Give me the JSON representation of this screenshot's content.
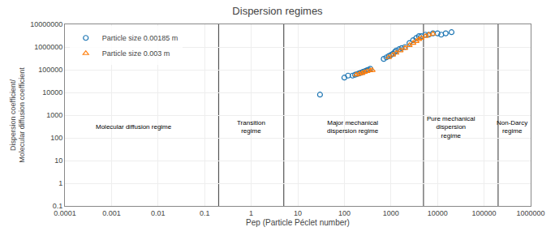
{
  "chart_data": {
    "type": "scatter",
    "title": "Dispersion regimes",
    "xlabel": "Pep (Particle Péclet number)",
    "ylabel": "Dispersion coefficient/\nMolecular diffusion coefficient",
    "log": true,
    "grid": true,
    "legend": "upper left",
    "xlim": [
      0.0001,
      1000000
    ],
    "ylim": [
      0.1,
      10000000
    ],
    "xticks": [
      0.0001,
      0.001,
      0.01,
      0.1,
      1,
      10,
      100,
      1000,
      10000,
      100000,
      1000000
    ],
    "yticks": [
      0.1,
      1,
      10,
      100,
      1000,
      10000,
      100000,
      1000000,
      10000000
    ],
    "vertical_lines": [
      0.2,
      5,
      5000,
      200000
    ],
    "annotations": [
      {
        "text": "Molecular diffusion regime",
        "x": 0.003,
        "y": 300
      },
      {
        "text": "Transition\nregime",
        "x": 1.0,
        "y": 300
      },
      {
        "text": "Major mechanical\ndispersion regime",
        "x": 150,
        "y": 300
      },
      {
        "text": "Pure mechanical\ndispersion\nregime",
        "x": 20000,
        "y": 300
      },
      {
        "text": "Non-Darcy\nregime",
        "x": 400000,
        "y": 300
      }
    ],
    "series": [
      {
        "name": "Particle size 0.00185 m",
        "marker": "circle",
        "x": [
          30,
          100,
          120,
          150,
          170,
          190,
          210,
          230,
          250,
          270,
          290,
          310,
          330,
          360,
          700,
          800,
          900,
          1000,
          1100,
          1200,
          1300,
          1500,
          1700,
          2000,
          2500,
          3000,
          3500,
          4000,
          4500,
          5500,
          6500,
          8000,
          10000,
          12000,
          15000,
          20000
        ],
        "values": [
          8000,
          45000,
          55000,
          55000,
          60000,
          65000,
          70000,
          75000,
          80000,
          85000,
          90000,
          95000,
          100000,
          110000,
          300000,
          350000,
          400000,
          450000,
          500000,
          600000,
          700000,
          800000,
          900000,
          1000000,
          1500000,
          2000000,
          2500000,
          3000000,
          3000000,
          3500000,
          3500000,
          4000000,
          4000000,
          3500000,
          4000000,
          4500000
        ]
      },
      {
        "name": "Particle size 0.003 m",
        "marker": "triangle",
        "x": [
          180,
          210,
          240,
          270,
          310,
          360,
          400,
          900,
          1100,
          1300,
          1600,
          2000,
          2500,
          3000,
          3500,
          4000,
          4500,
          5500,
          6500,
          8000
        ],
        "values": [
          60000,
          65000,
          70000,
          78000,
          85000,
          92000,
          95000,
          350000,
          450000,
          550000,
          700000,
          900000,
          1200000,
          1500000,
          1800000,
          2200000,
          2500000,
          3000000,
          3500000,
          3800000
        ]
      }
    ]
  }
}
